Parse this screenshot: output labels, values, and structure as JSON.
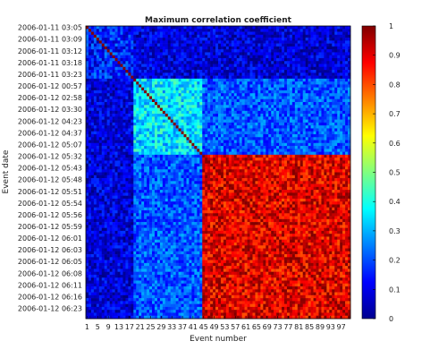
{
  "chart_data": {
    "type": "heatmap",
    "title": "Maximum correlation coefficient",
    "xlabel": "Event number",
    "ylabel": "Event date",
    "x_tick_labels": [
      "1",
      "5",
      "9",
      "13",
      "17",
      "21",
      "25",
      "29",
      "33",
      "37",
      "41",
      "45",
      "49",
      "53",
      "57",
      "61",
      "65",
      "69",
      "73",
      "77",
      "81",
      "85",
      "89",
      "93",
      "97"
    ],
    "y_tick_labels": [
      "2006-01-11 03:05",
      "2006-01-11 03:09",
      "2006-01-11 03:12",
      "2006-01-11 03:18",
      "2006-01-11 03:23",
      "2006-01-12 00:57",
      "2006-01-12 02:58",
      "2006-01-12 03:30",
      "2006-01-12 04:23",
      "2006-01-12 04:37",
      "2006-01-12 05:07",
      "2006-01-12 05:32",
      "2006-01-12 05:43",
      "2006-01-12 05:48",
      "2006-01-12 05:51",
      "2006-01-12 05:54",
      "2006-01-12 05:56",
      "2006-01-12 05:59",
      "2006-01-12 06:01",
      "2006-01-12 06:03",
      "2006-01-12 06:05",
      "2006-01-12 06:08",
      "2006-01-12 06:11",
      "2006-01-12 06:16",
      "2006-01-12 06:23"
    ],
    "n_events": 100,
    "clim": [
      0,
      1
    ],
    "colorbar_ticks": [
      "0",
      "0.1",
      "0.2",
      "0.3",
      "0.4",
      "0.5",
      "0.6",
      "0.7",
      "0.8",
      "0.9",
      "1"
    ],
    "colormap": "jet",
    "diagonal_value": 1,
    "blocks": [
      {
        "from_event": 1,
        "to_event": 18,
        "approx_value": 0.15
      },
      {
        "from_event": 19,
        "to_event": 44,
        "approx_value": 0.35
      },
      {
        "from_event": 45,
        "to_event": 100,
        "approx_value": 0.9
      }
    ]
  }
}
